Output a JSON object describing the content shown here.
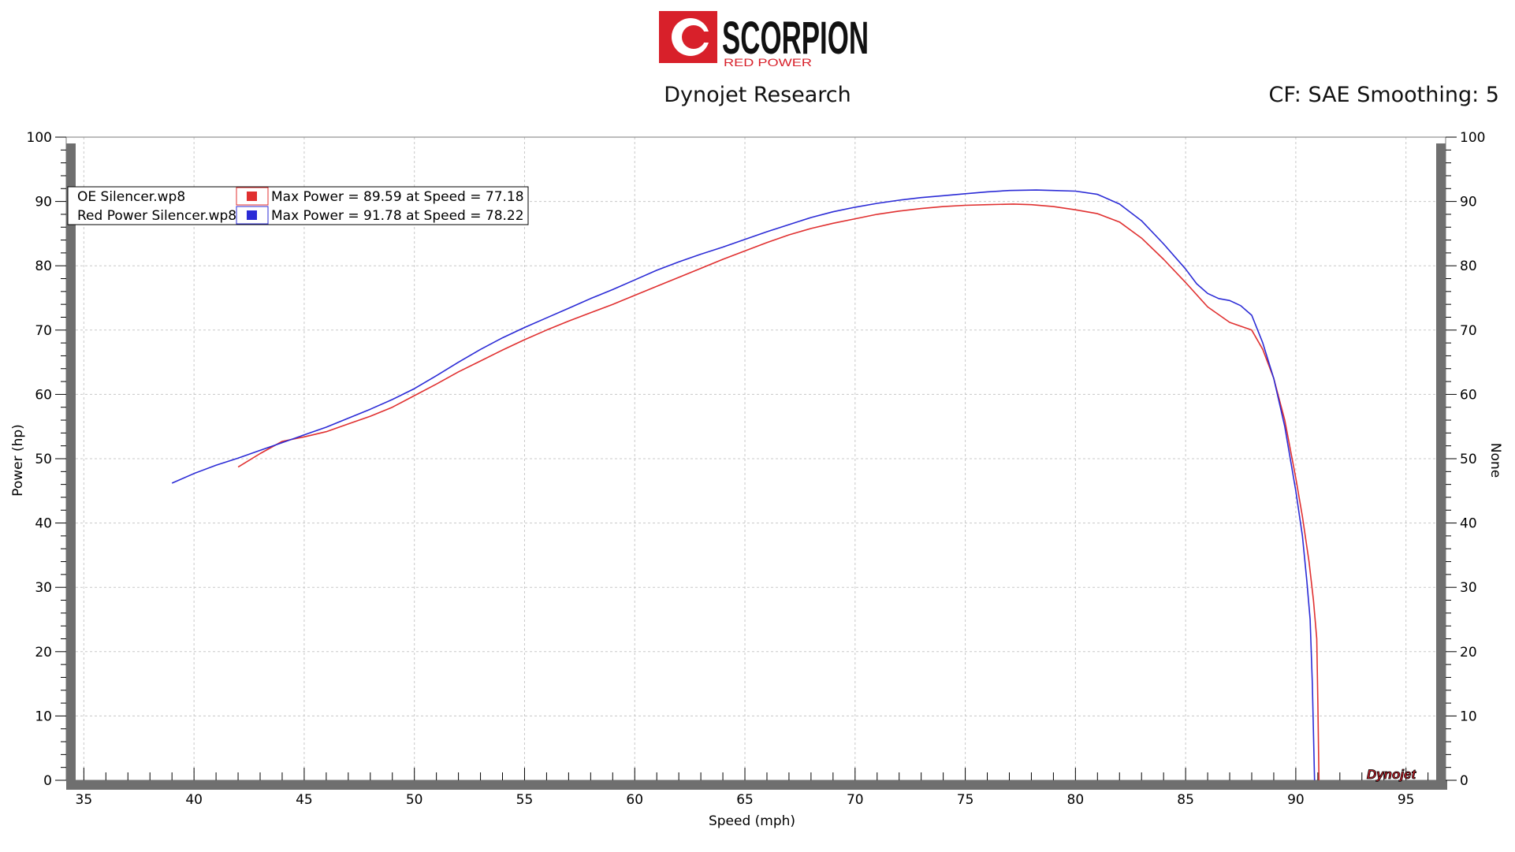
{
  "header": {
    "logo_text": "SCORPION",
    "logo_subtext": "RED POWER",
    "title": "Dynojet Research",
    "cf_text": "CF: SAE Smoothing: 5",
    "watermark": "Dynojet"
  },
  "colors": {
    "oe": "#e03030",
    "red_power": "#2b2bd6",
    "logo_red": "#d8202a"
  },
  "chart_data": {
    "type": "line",
    "xlabel": "Speed (mph)",
    "ylabel": "Power (hp)",
    "y2label": "None",
    "xlim": [
      34.2,
      96.8
    ],
    "ylim": [
      0,
      100
    ],
    "x_ticks": [
      35,
      40,
      45,
      50,
      55,
      60,
      65,
      70,
      75,
      80,
      85,
      90,
      95
    ],
    "y_ticks": [
      0,
      10,
      20,
      30,
      40,
      50,
      60,
      70,
      80,
      90,
      100
    ],
    "grid": true,
    "legend_position": "top-left",
    "series": [
      {
        "name": "OE Silencer.wp8",
        "summary": "Max Power = 89.59 at Speed = 77.18",
        "color_key": "oe",
        "points": [
          [
            42.0,
            48.7
          ],
          [
            43.0,
            50.8
          ],
          [
            44.0,
            52.7
          ],
          [
            45.0,
            53.4
          ],
          [
            46.0,
            54.2
          ],
          [
            47.0,
            55.4
          ],
          [
            48.0,
            56.6
          ],
          [
            49.0,
            58.0
          ],
          [
            50.0,
            59.8
          ],
          [
            51.0,
            61.6
          ],
          [
            52.0,
            63.5
          ],
          [
            53.0,
            65.2
          ],
          [
            54.0,
            66.9
          ],
          [
            55.0,
            68.5
          ],
          [
            56.0,
            70.0
          ],
          [
            57.0,
            71.4
          ],
          [
            58.0,
            72.7
          ],
          [
            59.0,
            74.0
          ],
          [
            60.0,
            75.4
          ],
          [
            61.0,
            76.8
          ],
          [
            62.0,
            78.2
          ],
          [
            63.0,
            79.6
          ],
          [
            64.0,
            81.0
          ],
          [
            65.0,
            82.3
          ],
          [
            66.0,
            83.6
          ],
          [
            67.0,
            84.8
          ],
          [
            68.0,
            85.8
          ],
          [
            69.0,
            86.6
          ],
          [
            70.0,
            87.3
          ],
          [
            71.0,
            88.0
          ],
          [
            72.0,
            88.5
          ],
          [
            73.0,
            88.9
          ],
          [
            74.0,
            89.2
          ],
          [
            75.0,
            89.4
          ],
          [
            76.0,
            89.5
          ],
          [
            77.18,
            89.59
          ],
          [
            78.0,
            89.5
          ],
          [
            79.0,
            89.2
          ],
          [
            80.0,
            88.7
          ],
          [
            81.0,
            88.1
          ],
          [
            82.0,
            86.8
          ],
          [
            83.0,
            84.3
          ],
          [
            84.0,
            81.0
          ],
          [
            85.0,
            77.4
          ],
          [
            86.0,
            73.6
          ],
          [
            87.0,
            71.2
          ],
          [
            88.0,
            70.0
          ],
          [
            88.5,
            67.0
          ],
          [
            89.0,
            62.5
          ],
          [
            89.5,
            56.0
          ],
          [
            90.0,
            47.0
          ],
          [
            90.3,
            41.0
          ],
          [
            90.6,
            34.0
          ],
          [
            90.8,
            28.0
          ],
          [
            90.95,
            22.0
          ],
          [
            91.0,
            12.0
          ],
          [
            91.05,
            0.0
          ]
        ]
      },
      {
        "name": "Red Power Silencer.wp8",
        "summary": "Max Power = 91.78 at Speed = 78.22",
        "color_key": "red_power",
        "points": [
          [
            39.0,
            46.2
          ],
          [
            40.0,
            47.7
          ],
          [
            41.0,
            49.0
          ],
          [
            42.0,
            50.1
          ],
          [
            43.0,
            51.3
          ],
          [
            44.0,
            52.5
          ],
          [
            45.0,
            53.7
          ],
          [
            46.0,
            54.9
          ],
          [
            47.0,
            56.3
          ],
          [
            48.0,
            57.7
          ],
          [
            49.0,
            59.2
          ],
          [
            50.0,
            60.9
          ],
          [
            51.0,
            62.9
          ],
          [
            52.0,
            65.0
          ],
          [
            53.0,
            67.0
          ],
          [
            54.0,
            68.8
          ],
          [
            55.0,
            70.4
          ],
          [
            56.0,
            71.9
          ],
          [
            57.0,
            73.4
          ],
          [
            58.0,
            74.9
          ],
          [
            59.0,
            76.3
          ],
          [
            60.0,
            77.8
          ],
          [
            61.0,
            79.3
          ],
          [
            62.0,
            80.6
          ],
          [
            63.0,
            81.8
          ],
          [
            64.0,
            82.9
          ],
          [
            65.0,
            84.1
          ],
          [
            66.0,
            85.3
          ],
          [
            67.0,
            86.4
          ],
          [
            68.0,
            87.5
          ],
          [
            69.0,
            88.4
          ],
          [
            70.0,
            89.1
          ],
          [
            71.0,
            89.7
          ],
          [
            72.0,
            90.2
          ],
          [
            73.0,
            90.6
          ],
          [
            74.0,
            90.9
          ],
          [
            75.0,
            91.2
          ],
          [
            76.0,
            91.5
          ],
          [
            77.0,
            91.7
          ],
          [
            78.22,
            91.78
          ],
          [
            79.0,
            91.7
          ],
          [
            80.0,
            91.6
          ],
          [
            81.0,
            91.1
          ],
          [
            82.0,
            89.6
          ],
          [
            83.0,
            87.0
          ],
          [
            84.0,
            83.4
          ],
          [
            85.0,
            79.5
          ],
          [
            85.5,
            77.2
          ],
          [
            86.0,
            75.7
          ],
          [
            86.5,
            74.9
          ],
          [
            87.0,
            74.6
          ],
          [
            87.5,
            73.8
          ],
          [
            88.0,
            72.3
          ],
          [
            88.5,
            68.0
          ],
          [
            89.0,
            62.5
          ],
          [
            89.5,
            55.0
          ],
          [
            90.0,
            45.0
          ],
          [
            90.3,
            38.0
          ],
          [
            90.5,
            31.0
          ],
          [
            90.65,
            25.0
          ],
          [
            90.75,
            15.0
          ],
          [
            90.85,
            0.0
          ]
        ]
      }
    ]
  }
}
